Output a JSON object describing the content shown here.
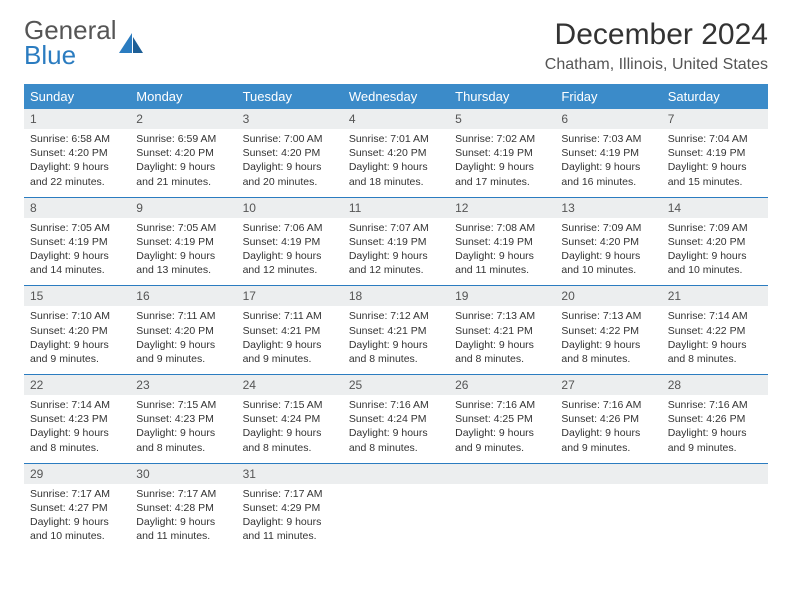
{
  "logo": {
    "line1": "General",
    "line2": "Blue",
    "color_gray": "#6a6a6a",
    "color_blue": "#2b7cc0"
  },
  "header": {
    "title": "December 2024",
    "location": "Chatham, Illinois, United States"
  },
  "colors": {
    "header_bg": "#3b8bc9",
    "daynum_bg": "#eceeef",
    "rule": "#2b7cc0"
  },
  "weekdays": [
    "Sunday",
    "Monday",
    "Tuesday",
    "Wednesday",
    "Thursday",
    "Friday",
    "Saturday"
  ],
  "weeks": [
    [
      {
        "n": "1",
        "sr": "6:58 AM",
        "ss": "4:20 PM",
        "d": "9 hours and 22 minutes."
      },
      {
        "n": "2",
        "sr": "6:59 AM",
        "ss": "4:20 PM",
        "d": "9 hours and 21 minutes."
      },
      {
        "n": "3",
        "sr": "7:00 AM",
        "ss": "4:20 PM",
        "d": "9 hours and 20 minutes."
      },
      {
        "n": "4",
        "sr": "7:01 AM",
        "ss": "4:20 PM",
        "d": "9 hours and 18 minutes."
      },
      {
        "n": "5",
        "sr": "7:02 AM",
        "ss": "4:19 PM",
        "d": "9 hours and 17 minutes."
      },
      {
        "n": "6",
        "sr": "7:03 AM",
        "ss": "4:19 PM",
        "d": "9 hours and 16 minutes."
      },
      {
        "n": "7",
        "sr": "7:04 AM",
        "ss": "4:19 PM",
        "d": "9 hours and 15 minutes."
      }
    ],
    [
      {
        "n": "8",
        "sr": "7:05 AM",
        "ss": "4:19 PM",
        "d": "9 hours and 14 minutes."
      },
      {
        "n": "9",
        "sr": "7:05 AM",
        "ss": "4:19 PM",
        "d": "9 hours and 13 minutes."
      },
      {
        "n": "10",
        "sr": "7:06 AM",
        "ss": "4:19 PM",
        "d": "9 hours and 12 minutes."
      },
      {
        "n": "11",
        "sr": "7:07 AM",
        "ss": "4:19 PM",
        "d": "9 hours and 12 minutes."
      },
      {
        "n": "12",
        "sr": "7:08 AM",
        "ss": "4:19 PM",
        "d": "9 hours and 11 minutes."
      },
      {
        "n": "13",
        "sr": "7:09 AM",
        "ss": "4:20 PM",
        "d": "9 hours and 10 minutes."
      },
      {
        "n": "14",
        "sr": "7:09 AM",
        "ss": "4:20 PM",
        "d": "9 hours and 10 minutes."
      }
    ],
    [
      {
        "n": "15",
        "sr": "7:10 AM",
        "ss": "4:20 PM",
        "d": "9 hours and 9 minutes."
      },
      {
        "n": "16",
        "sr": "7:11 AM",
        "ss": "4:20 PM",
        "d": "9 hours and 9 minutes."
      },
      {
        "n": "17",
        "sr": "7:11 AM",
        "ss": "4:21 PM",
        "d": "9 hours and 9 minutes."
      },
      {
        "n": "18",
        "sr": "7:12 AM",
        "ss": "4:21 PM",
        "d": "9 hours and 8 minutes."
      },
      {
        "n": "19",
        "sr": "7:13 AM",
        "ss": "4:21 PM",
        "d": "9 hours and 8 minutes."
      },
      {
        "n": "20",
        "sr": "7:13 AM",
        "ss": "4:22 PM",
        "d": "9 hours and 8 minutes."
      },
      {
        "n": "21",
        "sr": "7:14 AM",
        "ss": "4:22 PM",
        "d": "9 hours and 8 minutes."
      }
    ],
    [
      {
        "n": "22",
        "sr": "7:14 AM",
        "ss": "4:23 PM",
        "d": "9 hours and 8 minutes."
      },
      {
        "n": "23",
        "sr": "7:15 AM",
        "ss": "4:23 PM",
        "d": "9 hours and 8 minutes."
      },
      {
        "n": "24",
        "sr": "7:15 AM",
        "ss": "4:24 PM",
        "d": "9 hours and 8 minutes."
      },
      {
        "n": "25",
        "sr": "7:16 AM",
        "ss": "4:24 PM",
        "d": "9 hours and 8 minutes."
      },
      {
        "n": "26",
        "sr": "7:16 AM",
        "ss": "4:25 PM",
        "d": "9 hours and 9 minutes."
      },
      {
        "n": "27",
        "sr": "7:16 AM",
        "ss": "4:26 PM",
        "d": "9 hours and 9 minutes."
      },
      {
        "n": "28",
        "sr": "7:16 AM",
        "ss": "4:26 PM",
        "d": "9 hours and 9 minutes."
      }
    ],
    [
      {
        "n": "29",
        "sr": "7:17 AM",
        "ss": "4:27 PM",
        "d": "9 hours and 10 minutes."
      },
      {
        "n": "30",
        "sr": "7:17 AM",
        "ss": "4:28 PM",
        "d": "9 hours and 11 minutes."
      },
      {
        "n": "31",
        "sr": "7:17 AM",
        "ss": "4:29 PM",
        "d": "9 hours and 11 minutes."
      },
      null,
      null,
      null,
      null
    ]
  ]
}
